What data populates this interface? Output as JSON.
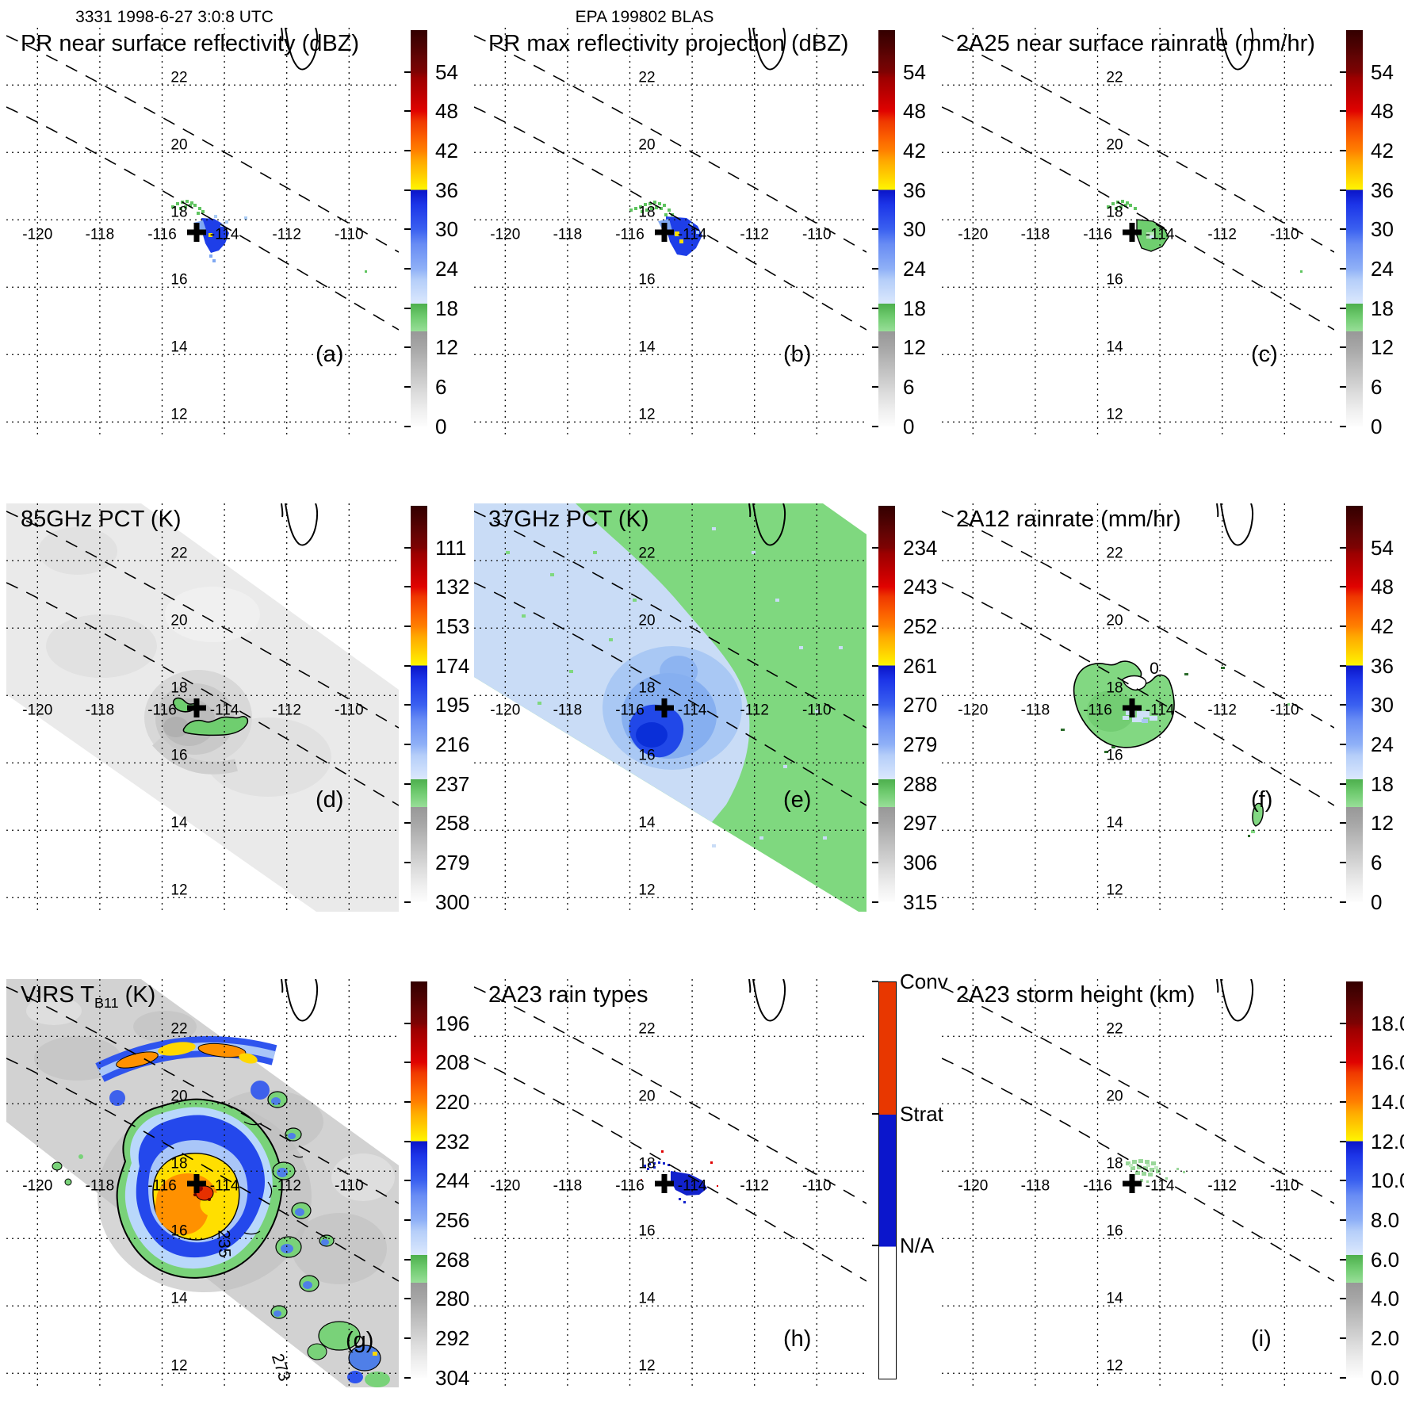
{
  "headers": {
    "orbit_time": "3331 1998-6-27 3:0:8 UTC",
    "storm_id": "EPA 199802 BLAS"
  },
  "geo": {
    "lon_ticks": [
      "-120",
      "-118",
      "-116",
      "-114",
      "-112",
      "-110"
    ],
    "lon_values": [
      -120,
      -118,
      -116,
      -114,
      -112,
      -110
    ],
    "lat_ticks": [
      "22",
      "20",
      "18",
      "16",
      "14",
      "12"
    ],
    "lat_values": [
      22,
      20,
      18,
      16,
      14,
      12
    ],
    "storm_marker": {
      "lon": -114.9,
      "lat": 17.6,
      "symbol": "+"
    }
  },
  "colors": {
    "conv": "#e83700",
    "strat": "#0b16cc",
    "na": "#ffffff",
    "rain_green": "#82d882",
    "echo_blue": "#1e3ee8",
    "swath_gray": "#eaeaea",
    "pct37_blue": "#c9dcf6",
    "pct37_green": "#7fd87f",
    "core_yellow": "#ffdf00",
    "core_orange": "#ff9100"
  },
  "panels": [
    {
      "id": "a",
      "title": "PR near surface reflectivity (dBZ)",
      "title_sub": "",
      "title_end": "",
      "letter": "(a)",
      "colorbar": {
        "type": "rainbow",
        "ticks": [
          "54",
          "48",
          "42",
          "36",
          "30",
          "24",
          "18",
          "12",
          "6",
          "0"
        ]
      },
      "annotations": []
    },
    {
      "id": "b",
      "title": "PR max reflectivity projection (dBZ)",
      "title_sub": "",
      "title_end": "",
      "letter": "(b)",
      "colorbar": {
        "type": "rainbow",
        "ticks": [
          "54",
          "48",
          "42",
          "36",
          "30",
          "24",
          "18",
          "12",
          "6",
          "0"
        ]
      },
      "annotations": []
    },
    {
      "id": "c",
      "title": "2A25 near surface rainrate (mm/hr)",
      "title_sub": "",
      "title_end": "",
      "letter": "(c)",
      "colorbar": {
        "type": "rainbow",
        "ticks": [
          "54",
          "48",
          "42",
          "36",
          "30",
          "24",
          "18",
          "12",
          "6",
          "0"
        ]
      },
      "annotations": []
    },
    {
      "id": "d",
      "title": "85GHz PCT (K)",
      "title_sub": "",
      "title_end": "",
      "letter": "(d)",
      "colorbar": {
        "type": "rainbow",
        "ticks": [
          "111",
          "132",
          "153",
          "174",
          "195",
          "216",
          "237",
          "258",
          "279",
          "300"
        ]
      },
      "annotations": []
    },
    {
      "id": "e",
      "title": "37GHz PCT (K)",
      "title_sub": "",
      "title_end": "",
      "letter": "(e)",
      "colorbar": {
        "type": "rainbow",
        "ticks": [
          "234",
          "243",
          "252",
          "261",
          "270",
          "279",
          "288",
          "297",
          "306",
          "315"
        ]
      },
      "annotations": []
    },
    {
      "id": "f",
      "title": "2A12 rainrate (mm/hr)",
      "title_sub": "",
      "title_end": "",
      "letter": "(f)",
      "colorbar": {
        "type": "rainbow",
        "ticks": [
          "54",
          "48",
          "42",
          "36",
          "30",
          "24",
          "18",
          "12",
          "6",
          "0"
        ]
      },
      "annotations": [
        "0"
      ]
    },
    {
      "id": "g",
      "title": "VIRS T",
      "title_sub": "B11",
      "title_end": " (K)",
      "letter": "(g)",
      "colorbar": {
        "type": "rainbow",
        "ticks": [
          "196",
          "208",
          "220",
          "232",
          "244",
          "256",
          "268",
          "280",
          "292",
          "304"
        ]
      },
      "annotations": [
        "235",
        "273"
      ]
    },
    {
      "id": "h",
      "title": "2A23 rain types",
      "title_sub": "",
      "title_end": "",
      "letter": "(h)",
      "colorbar": {
        "type": "raintype",
        "ticks": [
          "Conv",
          "Strat",
          "N/A"
        ]
      },
      "annotations": []
    },
    {
      "id": "i",
      "title": "2A23 storm height (km)",
      "title_sub": "",
      "title_end": "",
      "letter": "(i)",
      "colorbar": {
        "type": "rainbow",
        "ticks": [
          "18.0",
          "16.0",
          "14.0",
          "12.0",
          "10.0",
          "8.0",
          "6.0",
          "4.0",
          "2.0",
          "0.0"
        ]
      },
      "annotations": []
    }
  ],
  "chart_data": [
    {
      "panel": "a",
      "type": "heatmap",
      "title": "PR near surface reflectivity (dBZ)",
      "units": "dBZ",
      "colorbar_ticks": [
        54,
        48,
        42,
        36,
        30,
        24,
        18,
        12,
        6,
        0
      ],
      "lon_ticks": [
        -120,
        -118,
        -116,
        -114,
        -112,
        -110
      ],
      "lat_ticks": [
        22,
        20,
        18,
        16,
        14,
        12
      ],
      "storm_marker": {
        "lon": -114.9,
        "lat": 17.6
      },
      "notes": "small reflectivity cluster (18-36 dBZ, trace 36+) just east of storm marker, between dashed PR swath edges"
    },
    {
      "panel": "b",
      "type": "heatmap",
      "title": "PR max reflectivity projection (dBZ)",
      "units": "dBZ",
      "colorbar_ticks": [
        54,
        48,
        42,
        36,
        30,
        24,
        18,
        12,
        6,
        0
      ],
      "lon_ticks": [
        -120,
        -118,
        -116,
        -114,
        -112,
        -110
      ],
      "lat_ticks": [
        22,
        20,
        18,
        16,
        14,
        12
      ],
      "storm_marker": {
        "lon": -114.9,
        "lat": 17.6
      },
      "notes": "slightly larger echo cluster than panel a with isolated 36-42 dBZ pixels"
    },
    {
      "panel": "c",
      "type": "heatmap",
      "title": "2A25 near surface rainrate (mm/hr)",
      "units": "mm/hr",
      "colorbar_ticks": [
        54,
        48,
        42,
        36,
        30,
        24,
        18,
        12,
        6,
        0
      ],
      "lon_ticks": [
        -120,
        -118,
        -116,
        -114,
        -112,
        -110
      ],
      "lat_ticks": [
        22,
        20,
        18,
        16,
        14,
        12
      ],
      "storm_marker": {
        "lon": -114.9,
        "lat": 17.6
      },
      "notes": "light rain (0-6 mm/hr, green) patch east of marker"
    },
    {
      "panel": "d",
      "type": "heatmap",
      "title": "85GHz PCT (K)",
      "units": "K",
      "colorbar_ticks": [
        111,
        132,
        153,
        174,
        195,
        216,
        237,
        258,
        279,
        300
      ],
      "lon_ticks": [
        -120,
        -118,
        -116,
        -114,
        -112,
        -110
      ],
      "lat_ticks": [
        22,
        20,
        18,
        16,
        14,
        12
      ],
      "storm_marker": {
        "lon": -114.9,
        "lat": 17.6
      },
      "notes": "light-gray TMI swath, gray depression (~258-279 K) around center, two green (~237 K) comma-shaped arcs near marker"
    },
    {
      "panel": "e",
      "type": "heatmap",
      "title": "37GHz PCT (K)",
      "units": "K",
      "colorbar_ticks": [
        234,
        243,
        252,
        261,
        270,
        279,
        288,
        297,
        306,
        315
      ],
      "lon_ticks": [
        -120,
        -118,
        -116,
        -114,
        -112,
        -110
      ],
      "lat_ticks": [
        22,
        20,
        18,
        16,
        14,
        12
      ],
      "storm_marker": {
        "lon": -114.9,
        "lat": 17.6
      },
      "notes": "pale-blue (~279 K) swath northwest, green (~288 K) southeast, dark-blue (~270 K) core just southwest of marker"
    },
    {
      "panel": "f",
      "type": "heatmap",
      "title": "2A12 rainrate (mm/hr)",
      "units": "mm/hr",
      "colorbar_ticks": [
        54,
        48,
        42,
        36,
        30,
        24,
        18,
        12,
        6,
        0
      ],
      "lon_ticks": [
        -120,
        -118,
        -116,
        -114,
        -112,
        -110
      ],
      "lat_ticks": [
        22,
        20,
        18,
        16,
        14,
        12
      ],
      "storm_marker": {
        "lon": -114.9,
        "lat": 17.6
      },
      "contour_labels": [
        "0"
      ],
      "notes": "large green (0-6 mm/hr) outlined rain shield around marker with pale-blue (6-24) interior pixels; small outlined cell near -110.8, 14.6"
    },
    {
      "panel": "g",
      "type": "heatmap",
      "title": "VIRS TB11 (K)",
      "units": "K",
      "colorbar_ticks": [
        196,
        208,
        220,
        232,
        244,
        256,
        268,
        280,
        292,
        304
      ],
      "lon_ticks": [
        -120,
        -118,
        -116,
        -114,
        -112,
        -110
      ],
      "lat_ticks": [
        22,
        20,
        18,
        16,
        14,
        12
      ],
      "storm_marker": {
        "lon": -114.9,
        "lat": 17.6
      },
      "contour_labels": [
        "235",
        "273"
      ],
      "notes": "gray cloud field with cold central dense overcast: yellow/orange core (208-232 K) with red (<208 K) spots, blue ring (244-256 K), green fringe (~268 K); detached orange band north and scattered cold cells east/south"
    },
    {
      "panel": "h",
      "type": "heatmap",
      "title": "2A23 rain types",
      "units": "category",
      "categories": [
        "Conv",
        "Strat",
        "N/A"
      ],
      "lon_ticks": [
        -120,
        -118,
        -116,
        -114,
        -112,
        -110
      ],
      "lat_ticks": [
        22,
        20,
        18,
        16,
        14,
        12
      ],
      "storm_marker": {
        "lon": -114.9,
        "lat": 17.6
      },
      "notes": "mostly stratiform (blue) pixels east of marker with a few convective (red) specks"
    },
    {
      "panel": "i",
      "type": "heatmap",
      "title": "2A23 storm height (km)",
      "units": "km",
      "colorbar_ticks": [
        18,
        16,
        14,
        12,
        10,
        8,
        6,
        4,
        2,
        0
      ],
      "lon_ticks": [
        -120,
        -118,
        -116,
        -114,
        -112,
        -110
      ],
      "lat_ticks": [
        22,
        20,
        18,
        16,
        14,
        12
      ],
      "storm_marker": {
        "lon": -114.9,
        "lat": 17.6
      },
      "notes": "small cluster of 4-8 km storm heights (green) near marker"
    }
  ]
}
